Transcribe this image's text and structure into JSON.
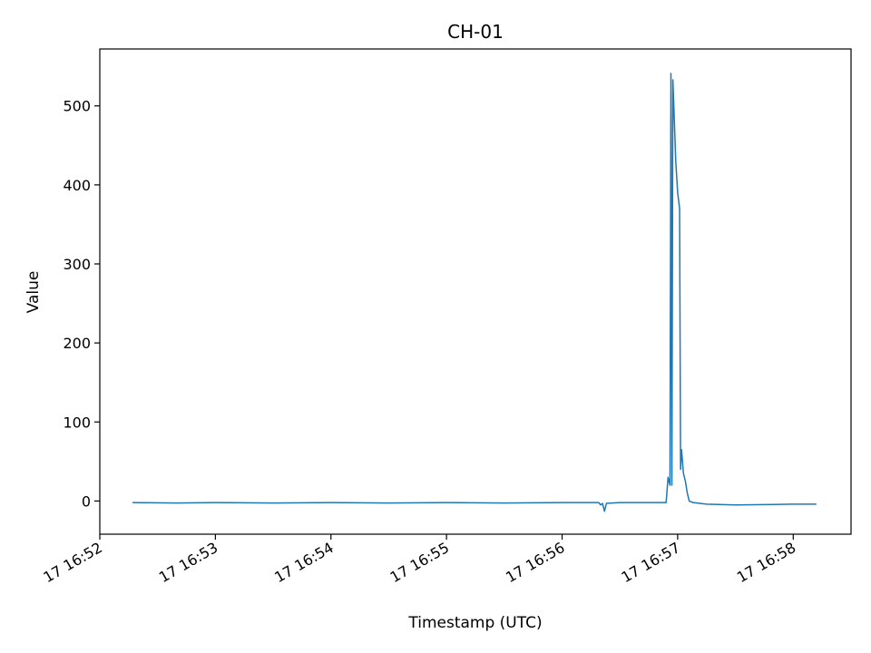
{
  "chart_data": {
    "type": "line",
    "title": "CH-01",
    "xlabel": "Timestamp (UTC)",
    "ylabel": "Value",
    "xlim": [
      "16:52:00",
      "16:58:30"
    ],
    "ylim": [
      -42,
      572
    ],
    "x_ticks": [
      {
        "t": "16:52:00",
        "label": "17 16:52"
      },
      {
        "t": "16:53:00",
        "label": "17 16:53"
      },
      {
        "t": "16:54:00",
        "label": "17 16:54"
      },
      {
        "t": "16:55:00",
        "label": "17 16:55"
      },
      {
        "t": "16:56:00",
        "label": "17 16:56"
      },
      {
        "t": "16:57:00",
        "label": "17 16:57"
      },
      {
        "t": "16:58:00",
        "label": "17 16:58"
      }
    ],
    "y_ticks": [
      {
        "v": 0,
        "label": "0"
      },
      {
        "v": 100,
        "label": "100"
      },
      {
        "v": 200,
        "label": "200"
      },
      {
        "v": 300,
        "label": "300"
      },
      {
        "v": 400,
        "label": "400"
      },
      {
        "v": 500,
        "label": "500"
      }
    ],
    "grid": false,
    "series": [
      {
        "color": "#1f77b4",
        "points": [
          [
            "16:52:17",
            -2
          ],
          [
            "16:52:40",
            -2.5
          ],
          [
            "16:53:00",
            -2
          ],
          [
            "16:53:30",
            -2.5
          ],
          [
            "16:54:00",
            -2
          ],
          [
            "16:54:30",
            -2.5
          ],
          [
            "16:55:00",
            -2
          ],
          [
            "16:55:30",
            -2.5
          ],
          [
            "16:56:00",
            -2
          ],
          [
            "16:56:19",
            -2
          ],
          [
            "16:56:20",
            -5
          ],
          [
            "16:56:21",
            -3
          ],
          [
            "16:56:22",
            -13
          ],
          [
            "16:56:23",
            -3
          ],
          [
            "16:56:30",
            -2
          ],
          [
            "16:56:45",
            -2
          ],
          [
            "16:56:54",
            -2
          ],
          [
            "16:56:55",
            30
          ],
          [
            "16:56:56",
            20
          ],
          [
            "16:56:56.5",
            541
          ],
          [
            "16:56:57",
            20
          ],
          [
            "16:56:57.5",
            533
          ],
          [
            "16:56:58",
            500
          ],
          [
            "16:56:59",
            430
          ],
          [
            "16:56:59.5",
            410
          ],
          [
            "16:57:00",
            390
          ],
          [
            "16:57:01",
            370
          ],
          [
            "16:57:01.5",
            40
          ],
          [
            "16:57:02",
            65
          ],
          [
            "16:57:03",
            35
          ],
          [
            "16:57:04",
            25
          ],
          [
            "16:57:05",
            10
          ],
          [
            "16:57:06",
            0
          ],
          [
            "16:57:08",
            -2
          ],
          [
            "16:57:15",
            -4
          ],
          [
            "16:57:30",
            -5
          ],
          [
            "16:57:45",
            -4.5
          ],
          [
            "16:58:00",
            -4
          ],
          [
            "16:58:12",
            -4
          ]
        ]
      }
    ]
  }
}
